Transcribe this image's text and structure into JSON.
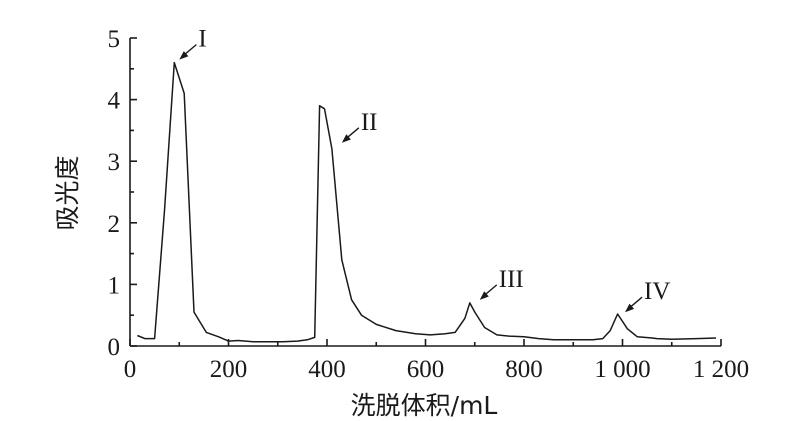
{
  "chart_data": {
    "type": "line",
    "xlabel": "洗脱体积/mL",
    "ylabel": "吸光度",
    "xlim": [
      0,
      1200
    ],
    "ylim": [
      0,
      5
    ],
    "x_ticks": [
      0,
      200,
      400,
      600,
      800,
      1000,
      1200
    ],
    "x_tick_labels": [
      "0",
      "200",
      "400",
      "600",
      "800",
      "1 000",
      "1 200"
    ],
    "y_ticks": [
      0,
      1,
      2,
      3,
      4,
      5
    ],
    "y_tick_labels": [
      "0",
      "1",
      "2",
      "3",
      "4",
      "5"
    ],
    "grid": false,
    "series": [
      {
        "x": [
          15,
          30,
          50,
          70,
          90,
          110,
          130,
          155,
          180,
          200,
          220,
          250,
          280,
          310,
          340,
          360,
          375,
          385,
          395,
          410,
          430,
          450,
          470,
          500,
          540,
          580,
          610,
          640,
          660,
          680,
          690,
          700,
          720,
          745,
          770,
          800,
          830,
          860,
          900,
          940,
          960,
          975,
          990,
          1010,
          1030,
          1060,
          1070,
          1100,
          1150,
          1190
        ],
        "y": [
          0.17,
          0.12,
          0.12,
          2.2,
          4.6,
          4.1,
          0.55,
          0.22,
          0.15,
          0.08,
          0.09,
          0.07,
          0.07,
          0.07,
          0.08,
          0.1,
          0.14,
          3.9,
          3.85,
          3.2,
          1.4,
          0.75,
          0.5,
          0.35,
          0.25,
          0.2,
          0.18,
          0.2,
          0.22,
          0.45,
          0.7,
          0.55,
          0.3,
          0.18,
          0.16,
          0.15,
          0.12,
          0.1,
          0.1,
          0.1,
          0.12,
          0.25,
          0.52,
          0.28,
          0.15,
          0.13,
          0.12,
          0.11,
          0.12,
          0.13
        ]
      }
    ],
    "annotations": [
      {
        "text": "I",
        "x": 90,
        "y": 4.6
      },
      {
        "text": "II",
        "x": 420,
        "y": 3.25
      },
      {
        "text": "III",
        "x": 700,
        "y": 0.7
      },
      {
        "text": "IV",
        "x": 995,
        "y": 0.5
      }
    ]
  }
}
